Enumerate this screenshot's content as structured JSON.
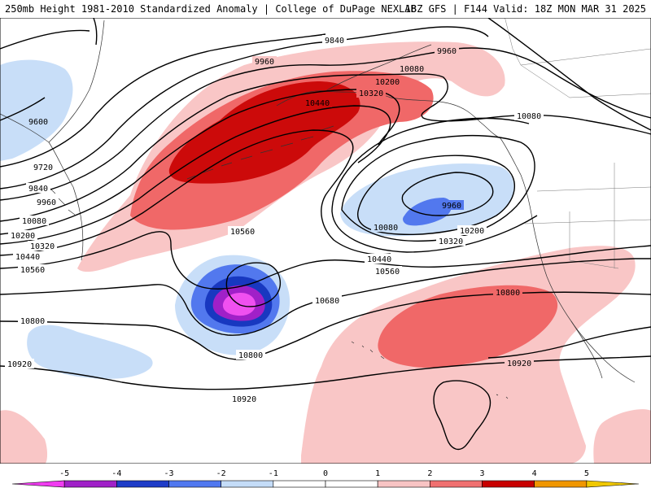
{
  "header": {
    "title_left": "250mb Height 1981-2010 Standardized Anomaly | College of DuPage NEXLAB",
    "title_right": "18Z GFS | F144 Valid: 18Z MON MAR 31 2025"
  },
  "contour_labels": {
    "c9840_a": "9840",
    "c9960_a": "9960",
    "c9960_b": "9960",
    "c10080_a": "10080",
    "c10200_a": "10200",
    "c10320_a": "10320",
    "c10440_a": "10440",
    "c9600_w": "9600",
    "c9720_w": "9720",
    "c9840_w": "9840",
    "c9960_w": "9960",
    "c10080_w": "10080",
    "c10200_w": "10200",
    "c10320_w": "10320",
    "c10440_w": "10440",
    "c10560_w": "10560",
    "c10560_c": "10560",
    "c10080_e": "10080",
    "c9960_low": "9960",
    "c10080_low": "10080",
    "c10200_low": "10200",
    "c10320_low": "10320",
    "c10440_low": "10440",
    "c10560_low": "10560",
    "c10680": "10680",
    "c10800_w": "10800",
    "c10800_c": "10800",
    "c10800_e": "10800",
    "c10920_w": "10920",
    "c10920_c": "10920",
    "c10920_e": "10920"
  },
  "colorbar": {
    "ticks": [
      "-5",
      "-4",
      "-3",
      "-2",
      "-1",
      "0",
      "1",
      "2",
      "3",
      "4",
      "5"
    ],
    "colors": [
      "#f03cf0",
      "#a020c8",
      "#1e3cc8",
      "#5078f0",
      "#c4dcf8",
      "#ffffff",
      "#ffffff",
      "#f8c4c4",
      "#f07070",
      "#c80000",
      "#f09600",
      "#f0c800"
    ]
  },
  "anomaly_colors": {
    "pos1": "#f9c6c6",
    "pos2": "#f06868",
    "pos3": "#cc0a0a",
    "neg1": "#c8def8",
    "neg2": "#5278ee",
    "neg3": "#1838c0",
    "neg4": "#a020c8",
    "neg5": "#f050f0"
  }
}
